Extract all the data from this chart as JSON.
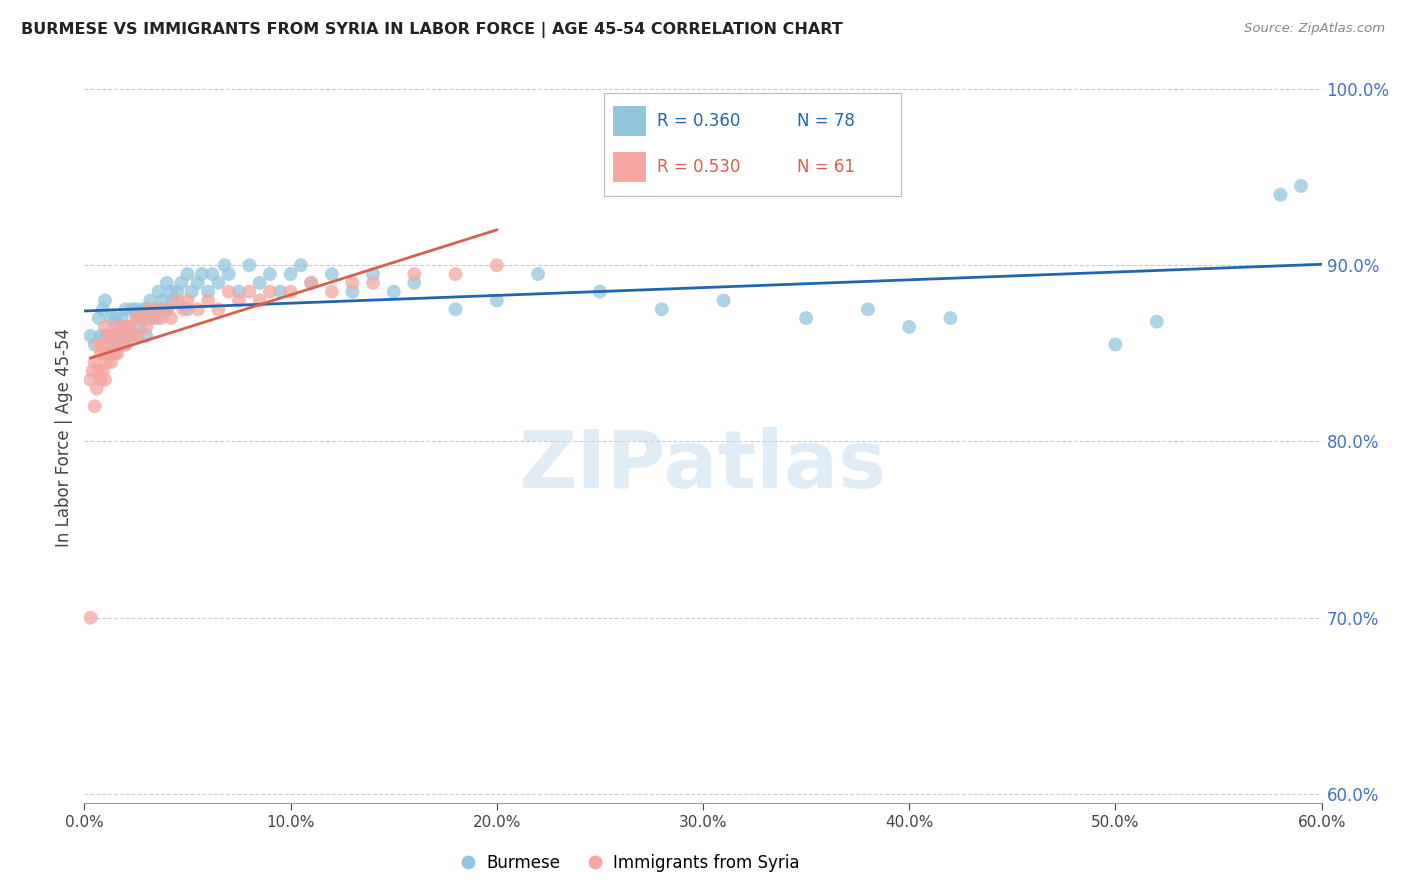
{
  "title": "BURMESE VS IMMIGRANTS FROM SYRIA IN LABOR FORCE | AGE 45-54 CORRELATION CHART",
  "source": "Source: ZipAtlas.com",
  "ylabel": "In Labor Force | Age 45-54",
  "legend_label1": "Burmese",
  "legend_label2": "Immigrants from Syria",
  "R1": 0.36,
  "N1": 78,
  "R2": 0.53,
  "N2": 61,
  "xlim": [
    0.0,
    0.6
  ],
  "ylim": [
    0.595,
    1.01
  ],
  "x_ticks": [
    0.0,
    0.1,
    0.2,
    0.3,
    0.4,
    0.5,
    0.6
  ],
  "y_ticks": [
    0.6,
    0.7,
    0.8,
    0.9,
    1.0
  ],
  "blue_color": "#92c5de",
  "blue_line_color": "#2166ac",
  "pink_color": "#f4a6a0",
  "pink_line_color": "#d6604d",
  "watermark_color": "#c8dff0",
  "blue_x": [
    0.003,
    0.005,
    0.007,
    0.008,
    0.009,
    0.01,
    0.01,
    0.012,
    0.013,
    0.014,
    0.015,
    0.015,
    0.016,
    0.017,
    0.018,
    0.019,
    0.02,
    0.02,
    0.021,
    0.022,
    0.023,
    0.025,
    0.025,
    0.026,
    0.027,
    0.028,
    0.03,
    0.03,
    0.031,
    0.032,
    0.033,
    0.035,
    0.036,
    0.037,
    0.038,
    0.04,
    0.04,
    0.042,
    0.043,
    0.045,
    0.047,
    0.05,
    0.05,
    0.052,
    0.055,
    0.057,
    0.06,
    0.062,
    0.065,
    0.068,
    0.07,
    0.075,
    0.08,
    0.085,
    0.09,
    0.095,
    0.1,
    0.105,
    0.11,
    0.12,
    0.13,
    0.14,
    0.15,
    0.16,
    0.18,
    0.2,
    0.22,
    0.25,
    0.28,
    0.31,
    0.35,
    0.38,
    0.4,
    0.42,
    0.5,
    0.52,
    0.58,
    0.59
  ],
  "blue_y": [
    0.86,
    0.855,
    0.87,
    0.86,
    0.875,
    0.86,
    0.88,
    0.855,
    0.87,
    0.86,
    0.85,
    0.87,
    0.855,
    0.865,
    0.87,
    0.86,
    0.855,
    0.875,
    0.865,
    0.86,
    0.875,
    0.86,
    0.875,
    0.87,
    0.865,
    0.875,
    0.86,
    0.875,
    0.87,
    0.88,
    0.875,
    0.87,
    0.885,
    0.875,
    0.88,
    0.875,
    0.89,
    0.885,
    0.88,
    0.885,
    0.89,
    0.875,
    0.895,
    0.885,
    0.89,
    0.895,
    0.885,
    0.895,
    0.89,
    0.9,
    0.895,
    0.885,
    0.9,
    0.89,
    0.895,
    0.885,
    0.895,
    0.9,
    0.89,
    0.895,
    0.885,
    0.895,
    0.885,
    0.89,
    0.875,
    0.88,
    0.895,
    0.885,
    0.875,
    0.88,
    0.87,
    0.875,
    0.865,
    0.87,
    0.855,
    0.868,
    0.94,
    0.945
  ],
  "pink_x": [
    0.003,
    0.004,
    0.005,
    0.005,
    0.006,
    0.007,
    0.007,
    0.008,
    0.008,
    0.009,
    0.009,
    0.01,
    0.01,
    0.01,
    0.011,
    0.012,
    0.012,
    0.013,
    0.013,
    0.014,
    0.015,
    0.015,
    0.016,
    0.017,
    0.018,
    0.019,
    0.02,
    0.02,
    0.021,
    0.022,
    0.023,
    0.025,
    0.026,
    0.027,
    0.03,
    0.031,
    0.033,
    0.035,
    0.037,
    0.04,
    0.042,
    0.045,
    0.048,
    0.05,
    0.055,
    0.06,
    0.065,
    0.07,
    0.075,
    0.08,
    0.085,
    0.09,
    0.1,
    0.11,
    0.12,
    0.13,
    0.14,
    0.16,
    0.18,
    0.2,
    0.003
  ],
  "pink_y": [
    0.835,
    0.84,
    0.82,
    0.845,
    0.83,
    0.84,
    0.855,
    0.835,
    0.85,
    0.84,
    0.855,
    0.835,
    0.85,
    0.865,
    0.845,
    0.85,
    0.86,
    0.845,
    0.86,
    0.85,
    0.855,
    0.865,
    0.85,
    0.86,
    0.855,
    0.865,
    0.855,
    0.865,
    0.86,
    0.865,
    0.86,
    0.87,
    0.86,
    0.87,
    0.865,
    0.875,
    0.87,
    0.875,
    0.87,
    0.875,
    0.87,
    0.88,
    0.875,
    0.88,
    0.875,
    0.88,
    0.875,
    0.885,
    0.88,
    0.885,
    0.88,
    0.885,
    0.885,
    0.89,
    0.885,
    0.89,
    0.89,
    0.895,
    0.895,
    0.9,
    0.7
  ]
}
